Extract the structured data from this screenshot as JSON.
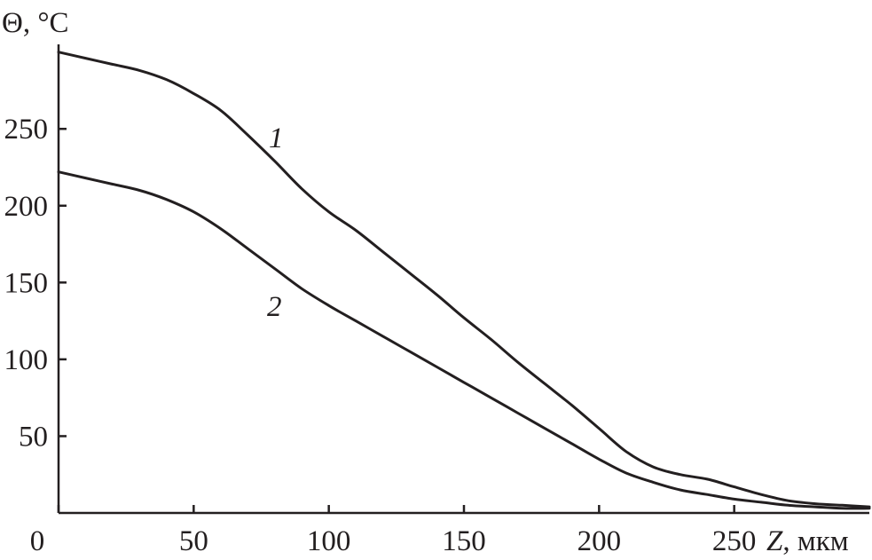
{
  "chart_data": {
    "type": "line",
    "ylabel": "Θ, °C",
    "xlabel_var": "Z",
    "xlabel_unit": ", мкм",
    "xlim": [
      0,
      300
    ],
    "ylim": [
      0,
      305
    ],
    "x_ticks": [
      0,
      50,
      100,
      150,
      200,
      250
    ],
    "y_ticks": [
      50,
      100,
      150,
      200,
      250
    ],
    "grid": false,
    "series": [
      {
        "name": "1",
        "x": [
          0,
          10,
          20,
          30,
          40,
          50,
          60,
          70,
          80,
          90,
          100,
          110,
          120,
          130,
          140,
          150,
          160,
          170,
          180,
          190,
          200,
          210,
          220,
          230,
          240,
          250,
          260,
          270,
          280,
          290,
          300
        ],
        "y": [
          300,
          296,
          292,
          288,
          282,
          273,
          262,
          246,
          229,
          211,
          196,
          184,
          170,
          156,
          142,
          127,
          113,
          98,
          84,
          70,
          55,
          40,
          30,
          25,
          22,
          17,
          12,
          8,
          6,
          5,
          4
        ]
      },
      {
        "name": "2",
        "x": [
          0,
          10,
          20,
          30,
          40,
          50,
          60,
          70,
          80,
          90,
          100,
          110,
          120,
          130,
          140,
          150,
          160,
          170,
          180,
          190,
          200,
          210,
          220,
          230,
          240,
          250,
          260,
          270,
          280,
          290,
          300
        ],
        "y": [
          222,
          218,
          214,
          210,
          204,
          196,
          185,
          172,
          159,
          146,
          135,
          125,
          115,
          105,
          95,
          85,
          75,
          65,
          55,
          45,
          35,
          26,
          20,
          15,
          12,
          9,
          7,
          5,
          4,
          3,
          3
        ]
      }
    ]
  }
}
